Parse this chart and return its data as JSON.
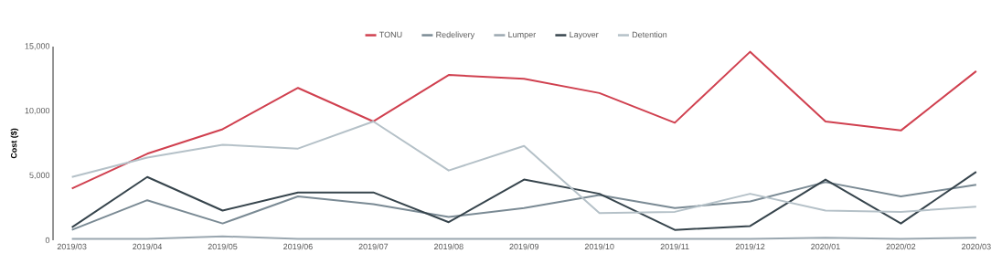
{
  "chart_data": {
    "type": "line",
    "ylabel": "Cost ($)",
    "categories": [
      "2019/03",
      "2019/04",
      "2019/05",
      "2019/06",
      "2019/07",
      "2019/08",
      "2019/09",
      "2019/10",
      "2019/11",
      "2019/12",
      "2020/01",
      "2020/02",
      "2020/03"
    ],
    "series": [
      {
        "name": "TONU",
        "color": "#d0404f",
        "values": [
          4000,
          6700,
          8600,
          11800,
          9200,
          12800,
          12500,
          11400,
          9100,
          14600,
          9200,
          8500,
          13100
        ]
      },
      {
        "name": "Redelivery",
        "color": "#7a8a94",
        "values": [
          800,
          3100,
          1300,
          3400,
          2800,
          1800,
          2500,
          3500,
          2500,
          3000,
          4500,
          3400,
          4300
        ]
      },
      {
        "name": "Lumper",
        "color": "#9aa7b0",
        "values": [
          100,
          100,
          300,
          100,
          100,
          100,
          100,
          100,
          100,
          100,
          200,
          100,
          200
        ]
      },
      {
        "name": "Layover",
        "color": "#36444c",
        "values": [
          1000,
          4900,
          2300,
          3700,
          3700,
          1400,
          4700,
          3600,
          800,
          1100,
          4700,
          1300,
          5300
        ]
      },
      {
        "name": "Detention",
        "color": "#b5c1c8",
        "values": [
          4900,
          6400,
          7400,
          7100,
          9200,
          5400,
          7300,
          2100,
          2200,
          3600,
          2300,
          2200,
          2600
        ]
      }
    ],
    "ylim": [
      0,
      15000
    ],
    "yticks": [
      {
        "value": 0,
        "label": "0"
      },
      {
        "value": 5000,
        "label": "5,000"
      },
      {
        "value": 10000,
        "label": "10,000"
      },
      {
        "value": 15000,
        "label": "15,000"
      }
    ],
    "legend": "top",
    "grid": false,
    "marker": "none",
    "line_style": "solid"
  }
}
